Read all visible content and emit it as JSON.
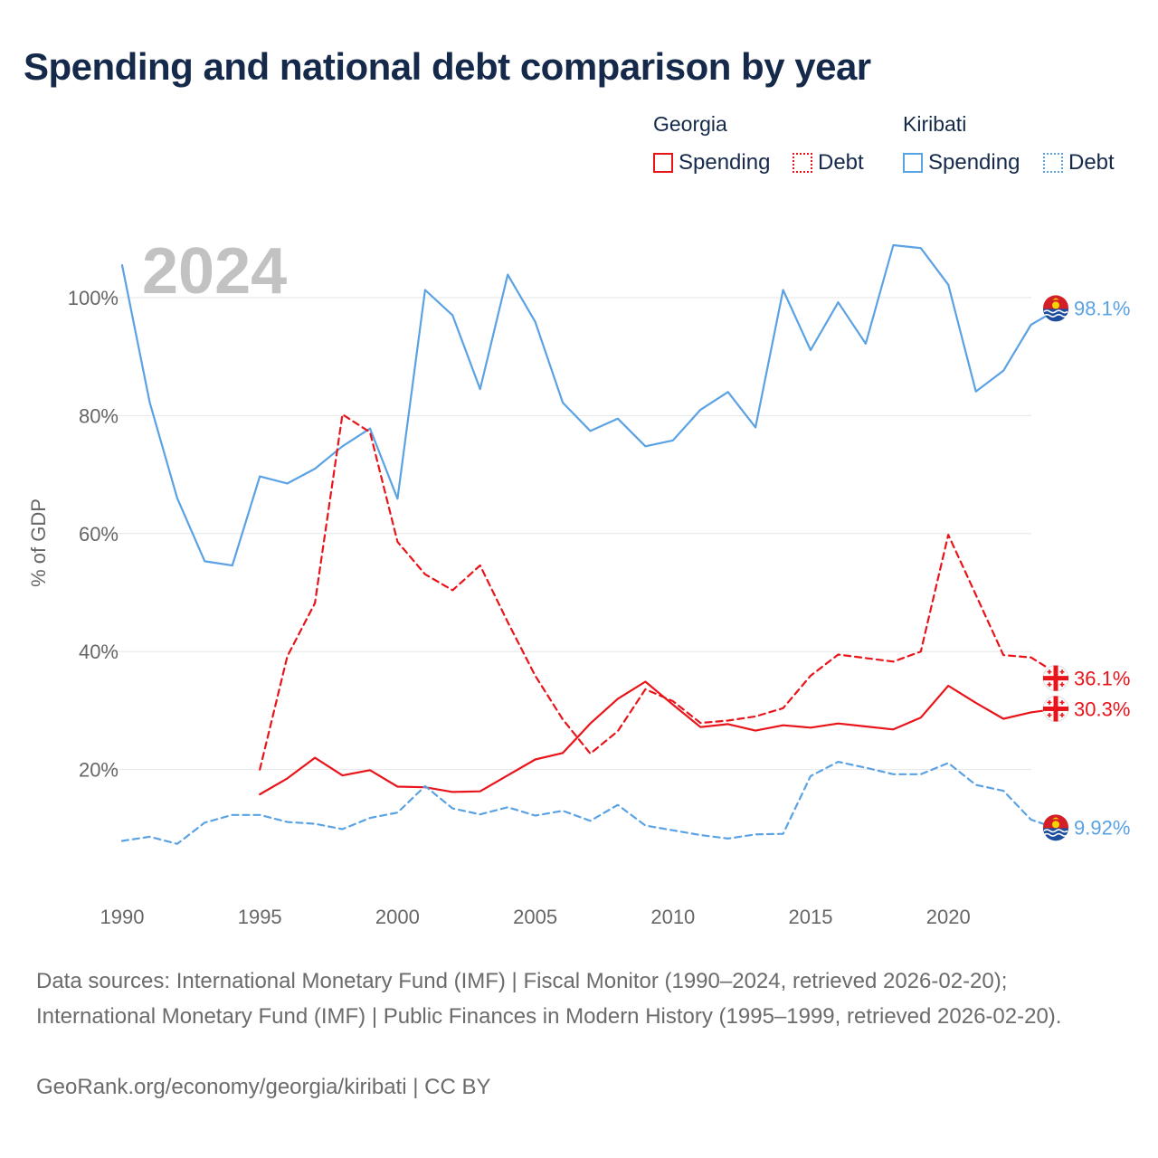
{
  "title": "Spending and national debt comparison by year",
  "legend": {
    "georgia": {
      "name": "Georgia",
      "spending": "Spending",
      "debt": "Debt"
    },
    "kiribati": {
      "name": "Kiribati",
      "spending": "Spending",
      "debt": "Debt"
    }
  },
  "colors": {
    "georgia": "#e8141a",
    "kiribati": "#5aa2e3"
  },
  "footer": {
    "sources": "Data sources: International Monetary Fund (IMF) | Fiscal Monitor (1990–2024, retrieved 2026-02-20); International Monetary Fund (IMF) | Public Finances in Modern History (1995–1999, retrieved 2026-02-20).",
    "credit": "GeoRank.org/economy/georgia/kiribati | CC BY"
  },
  "chart_data": {
    "type": "line",
    "title": "Spending and national debt comparison by year",
    "year_label": "2024",
    "xlabel": "",
    "ylabel": "% of GDP",
    "xlim": [
      1990,
      2024
    ],
    "ylim": [
      0,
      112
    ],
    "x_ticks": [
      1990,
      1995,
      2000,
      2005,
      2010,
      2015,
      2020
    ],
    "y_ticks": [
      20,
      40,
      60,
      80,
      100
    ],
    "y_tick_labels": [
      "20%",
      "40%",
      "60%",
      "80%",
      "100%"
    ],
    "grid": true,
    "series": [
      {
        "name": "Kiribati Spending",
        "country": "kiribati",
        "style": "solid",
        "x": [
          1990,
          1991,
          1992,
          1993,
          1994,
          1995,
          1996,
          1997,
          1998,
          1999,
          2000,
          2001,
          2002,
          2003,
          2004,
          2005,
          2006,
          2007,
          2008,
          2009,
          2010,
          2011,
          2012,
          2013,
          2014,
          2015,
          2016,
          2017,
          2018,
          2019,
          2020,
          2021,
          2022,
          2023,
          2024
        ],
        "values": [
          105.5,
          82.3,
          66.0,
          55.3,
          54.6,
          69.7,
          68.5,
          71.0,
          74.8,
          77.8,
          65.9,
          101.3,
          97.0,
          84.5,
          103.9,
          95.9,
          82.2,
          77.4,
          79.5,
          74.8,
          75.8,
          81.0,
          84.0,
          78.0,
          101.3,
          91.1,
          99.2,
          92.2,
          108.9,
          108.4,
          102.2,
          84.1,
          87.6,
          95.4,
          98.1
        ],
        "end_label": "98.1%"
      },
      {
        "name": "Georgia Debt",
        "country": "georgia",
        "style": "dashed",
        "x": [
          1995,
          1996,
          1997,
          1998,
          1999,
          2000,
          2001,
          2002,
          2003,
          2004,
          2005,
          2006,
          2007,
          2008,
          2009,
          2010,
          2011,
          2012,
          2013,
          2014,
          2015,
          2016,
          2017,
          2018,
          2019,
          2020,
          2021,
          2022,
          2023,
          2024
        ],
        "values": [
          20.0,
          39.2,
          48.2,
          80.2,
          77.2,
          58.6,
          53.1,
          50.4,
          54.6,
          45.0,
          35.9,
          28.5,
          22.7,
          26.5,
          33.6,
          31.6,
          27.9,
          28.3,
          29.0,
          30.4,
          35.9,
          39.5,
          38.9,
          38.3,
          40.0,
          59.8,
          49.6,
          39.4,
          39.0,
          36.1
        ],
        "end_label": "36.1%"
      },
      {
        "name": "Georgia Spending",
        "country": "georgia",
        "style": "solid",
        "x": [
          1995,
          1996,
          1997,
          1998,
          1999,
          2000,
          2001,
          2002,
          2003,
          2004,
          2005,
          2006,
          2007,
          2008,
          2009,
          2010,
          2011,
          2012,
          2013,
          2014,
          2015,
          2016,
          2017,
          2018,
          2019,
          2020,
          2021,
          2022,
          2023,
          2024
        ],
        "values": [
          15.8,
          18.5,
          22.0,
          19.0,
          19.9,
          17.1,
          17.0,
          16.2,
          16.3,
          19.0,
          21.7,
          22.8,
          27.8,
          32.0,
          34.9,
          31.0,
          27.2,
          27.7,
          26.6,
          27.5,
          27.1,
          27.8,
          27.3,
          26.8,
          28.8,
          34.2,
          31.3,
          28.6,
          29.7,
          30.3
        ],
        "end_label": "30.3%"
      },
      {
        "name": "Kiribati Debt",
        "country": "kiribati",
        "style": "dashed",
        "x": [
          1990,
          1991,
          1992,
          1993,
          1994,
          1995,
          1996,
          1997,
          1998,
          1999,
          2000,
          2001,
          2002,
          2003,
          2004,
          2005,
          2006,
          2007,
          2008,
          2009,
          2010,
          2011,
          2012,
          2013,
          2014,
          2015,
          2016,
          2017,
          2018,
          2019,
          2020,
          2021,
          2022,
          2023,
          2024
        ],
        "values": [
          7.9,
          8.6,
          7.4,
          11.0,
          12.3,
          12.3,
          11.1,
          10.8,
          9.9,
          11.8,
          12.7,
          17.2,
          13.4,
          12.4,
          13.6,
          12.2,
          13.0,
          11.3,
          14.0,
          10.5,
          9.7,
          8.9,
          8.3,
          9.0,
          9.1,
          18.9,
          21.3,
          20.3,
          19.2,
          19.2,
          21.1,
          17.4,
          16.4,
          11.5,
          9.92
        ],
        "end_label": "9.92%"
      }
    ]
  }
}
